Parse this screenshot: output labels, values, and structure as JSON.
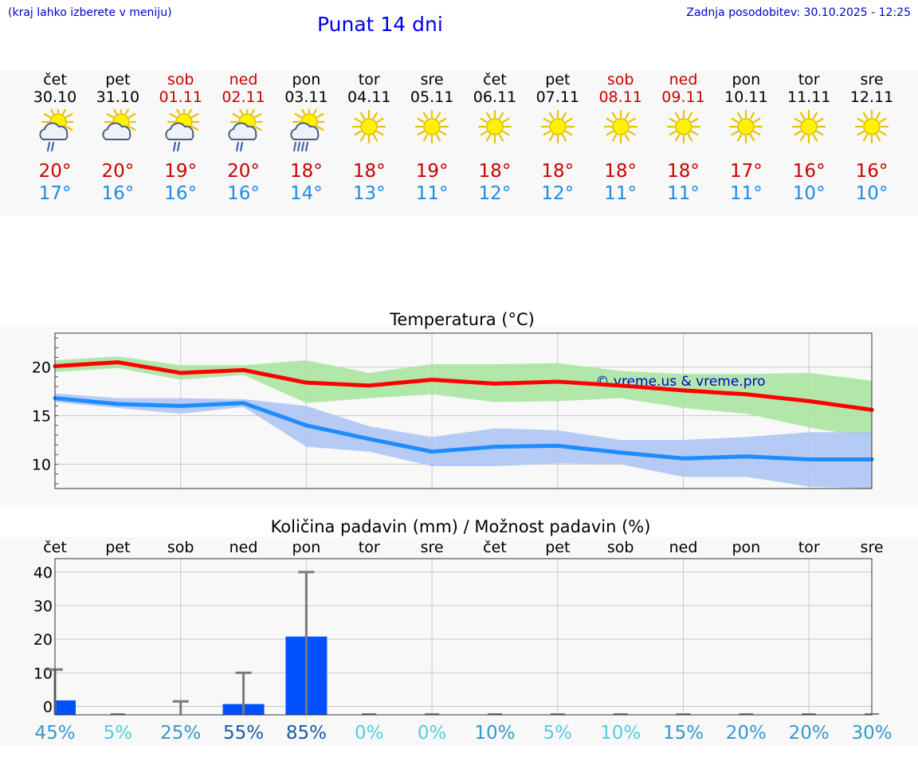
{
  "header": {
    "hint": "(kraj lahko izberete v meniju)",
    "title": "Punat 14 dni",
    "updated": "Zadnja posodobitev: 30.10.2025 - 12:25"
  },
  "days": [
    {
      "name": "čet",
      "date": "30.10",
      "weekend": false,
      "icon": "sun-cloud-rain-icon",
      "max": "20°",
      "min": "17°"
    },
    {
      "name": "pet",
      "date": "31.10",
      "weekend": false,
      "icon": "sun-cloud-icon",
      "max": "20°",
      "min": "16°"
    },
    {
      "name": "sob",
      "date": "01.11",
      "weekend": true,
      "icon": "sun-cloud-rain-icon",
      "max": "19°",
      "min": "16°"
    },
    {
      "name": "ned",
      "date": "02.11",
      "weekend": true,
      "icon": "sun-cloud-rain-icon",
      "max": "20°",
      "min": "16°"
    },
    {
      "name": "pon",
      "date": "03.11",
      "weekend": false,
      "icon": "sun-cloud-heavy-rain-icon",
      "max": "18°",
      "min": "14°"
    },
    {
      "name": "tor",
      "date": "04.11",
      "weekend": false,
      "icon": "sun-icon",
      "max": "18°",
      "min": "13°"
    },
    {
      "name": "sre",
      "date": "05.11",
      "weekend": false,
      "icon": "sun-icon",
      "max": "19°",
      "min": "11°"
    },
    {
      "name": "čet",
      "date": "06.11",
      "weekend": false,
      "icon": "sun-icon",
      "max": "18°",
      "min": "12°"
    },
    {
      "name": "pet",
      "date": "07.11",
      "weekend": false,
      "icon": "sun-icon",
      "max": "18°",
      "min": "12°"
    },
    {
      "name": "sob",
      "date": "08.11",
      "weekend": true,
      "icon": "sun-icon",
      "max": "18°",
      "min": "11°"
    },
    {
      "name": "ned",
      "date": "09.11",
      "weekend": true,
      "icon": "sun-icon",
      "max": "18°",
      "min": "11°"
    },
    {
      "name": "pon",
      "date": "10.11",
      "weekend": false,
      "icon": "sun-icon",
      "max": "17°",
      "min": "11°"
    },
    {
      "name": "tor",
      "date": "11.11",
      "weekend": false,
      "icon": "sun-icon",
      "max": "16°",
      "min": "10°"
    },
    {
      "name": "sre",
      "date": "12.11",
      "weekend": false,
      "icon": "sun-icon",
      "max": "16°",
      "min": "10°"
    }
  ],
  "chart_data": [
    {
      "type": "line",
      "title": "Temperatura (°C)",
      "watermark": "© vreme.us & vreme.pro",
      "ylim": [
        7.5,
        23.5
      ],
      "yticks": [
        10,
        15,
        20
      ],
      "x": [
        0,
        1,
        2,
        3,
        4,
        5,
        6,
        7,
        8,
        9,
        10,
        11,
        12,
        13
      ],
      "series": [
        {
          "name": "max",
          "color": "#ff0000",
          "values": [
            20.1,
            20.5,
            19.4,
            19.7,
            18.4,
            18.1,
            18.7,
            18.3,
            18.5,
            18.1,
            17.6,
            17.2,
            16.5,
            15.6
          ]
        },
        {
          "name": "min",
          "color": "#1e8cff",
          "values": [
            16.8,
            16.2,
            16.0,
            16.3,
            14.0,
            12.6,
            11.3,
            11.8,
            11.9,
            11.2,
            10.6,
            10.8,
            10.5,
            10.5
          ]
        }
      ],
      "bands": [
        {
          "name": "max-range",
          "color": "#a8e4a0",
          "upper": [
            20.7,
            21.1,
            20.2,
            20.2,
            20.7,
            19.4,
            20.3,
            20.3,
            20.4,
            19.6,
            19.3,
            19.3,
            19.4,
            18.6
          ],
          "lower": [
            19.5,
            19.9,
            18.7,
            19.2,
            16.3,
            16.8,
            17.2,
            16.4,
            16.5,
            16.8,
            15.8,
            15.2,
            13.8,
            12.7
          ]
        },
        {
          "name": "min-range",
          "color": "#adc4f4",
          "upper": [
            17.3,
            16.8,
            16.8,
            16.7,
            16.0,
            13.9,
            12.8,
            13.7,
            13.5,
            12.5,
            12.5,
            12.8,
            13.3,
            13.3
          ],
          "lower": [
            16.4,
            15.8,
            15.2,
            15.9,
            11.8,
            11.3,
            9.8,
            9.8,
            10.1,
            10.0,
            8.7,
            8.7,
            7.7,
            7.5
          ]
        }
      ]
    },
    {
      "type": "bar",
      "title": "Količina padavin (mm) / Možnost padavin (%)",
      "categories": [
        "čet",
        "pet",
        "sob",
        "ned",
        "pon",
        "tor",
        "sre",
        "čet",
        "pet",
        "sob",
        "ned",
        "pon",
        "tor",
        "sre"
      ],
      "ylim": [
        -2.5,
        44
      ],
      "yticks": [
        0,
        10,
        20,
        30,
        40
      ],
      "values": [
        1.8,
        0,
        0,
        0.7,
        20.8,
        0,
        0,
        0,
        0,
        0,
        0,
        0,
        0,
        0
      ],
      "max_values": [
        11,
        0,
        1.5,
        10,
        40,
        0,
        0,
        0,
        0,
        0,
        0,
        0,
        0,
        0
      ],
      "probabilities": [
        "45%",
        "5%",
        "25%",
        "55%",
        "85%",
        "0%",
        "0%",
        "10%",
        "5%",
        "10%",
        "15%",
        "20%",
        "20%",
        "30%"
      ],
      "prob_colors": [
        "#3399cc",
        "#55cce0",
        "#3399cc",
        "#1a5aa8",
        "#1a5aa8",
        "#55cce0",
        "#55cce0",
        "#3399cc",
        "#55cce0",
        "#55cce0",
        "#3399cc",
        "#3399cc",
        "#3399cc",
        "#3399cc"
      ]
    }
  ]
}
